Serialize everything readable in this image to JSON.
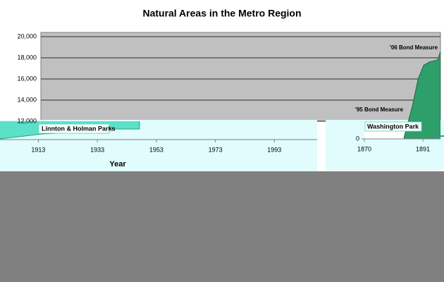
{
  "chart_data": [
    {
      "type": "area",
      "title": "Natural Areas in the Metro Region",
      "ylim": [
        12000,
        20000
      ],
      "yticks": [
        {
          "value": 12000,
          "label": "12,000"
        },
        {
          "value": 14000,
          "label": "14,000"
        },
        {
          "value": 16000,
          "label": "16,000"
        },
        {
          "value": 18000,
          "label": "18,000"
        },
        {
          "value": 20000,
          "label": "20,000"
        }
      ],
      "grid": true,
      "xlim": [
        1754,
        1897
      ],
      "series": [
        {
          "color": "#2e9e6a",
          "x": [
            1884,
            1887,
            1889,
            1891,
            1893,
            1896,
            1897
          ],
          "values": [
            10500,
            13500,
            16000,
            17300,
            17600,
            17800,
            18600
          ]
        }
      ],
      "annotations": [
        "'06 Bond Measure",
        "'95 Bond Measure"
      ]
    },
    {
      "type": "panel",
      "x_label": "Year",
      "xlim": [
        1900,
        2007.5
      ],
      "xticks": [
        1913,
        1933,
        1953,
        1973,
        1993
      ],
      "annotations": [
        "Linnton & Holman Parks"
      ]
    },
    {
      "type": "panel",
      "xlim": [
        1870,
        1897.3
      ],
      "xticks": [
        1870,
        1891
      ],
      "ylim": [
        0,
        12000
      ],
      "yticks": [
        0
      ],
      "annotations": [
        "Washington Park"
      ]
    }
  ]
}
